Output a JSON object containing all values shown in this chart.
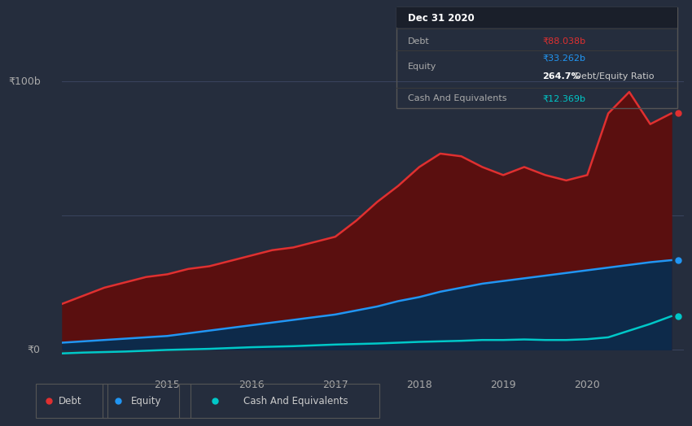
{
  "background_color": "#252d3d",
  "plot_bg_color": "#252d3d",
  "grid_color": "#3a4460",
  "years_x": [
    2013.75,
    2014.0,
    2014.25,
    2014.5,
    2014.75,
    2015.0,
    2015.25,
    2015.5,
    2015.75,
    2016.0,
    2016.25,
    2016.5,
    2016.75,
    2017.0,
    2017.25,
    2017.5,
    2017.75,
    2018.0,
    2018.25,
    2018.5,
    2018.75,
    2019.0,
    2019.25,
    2019.5,
    2019.75,
    2020.0,
    2020.25,
    2020.5,
    2020.75,
    2021.0
  ],
  "debt": [
    17,
    20,
    23,
    25,
    27,
    28,
    30,
    31,
    33,
    35,
    37,
    38,
    40,
    42,
    48,
    55,
    61,
    68,
    73,
    72,
    68,
    65,
    68,
    65,
    63,
    65,
    88,
    96,
    84,
    88
  ],
  "equity": [
    2.5,
    3.0,
    3.5,
    4.0,
    4.5,
    5.0,
    6.0,
    7.0,
    8.0,
    9.0,
    10.0,
    11.0,
    12.0,
    13.0,
    14.5,
    16.0,
    18.0,
    19.5,
    21.5,
    23.0,
    24.5,
    25.5,
    26.5,
    27.5,
    28.5,
    29.5,
    30.5,
    31.5,
    32.5,
    33.262
  ],
  "cash": [
    -1.5,
    -1.2,
    -1.0,
    -0.8,
    -0.5,
    -0.2,
    0.0,
    0.2,
    0.5,
    0.8,
    1.0,
    1.2,
    1.5,
    1.8,
    2.0,
    2.2,
    2.5,
    2.8,
    3.0,
    3.2,
    3.5,
    3.5,
    3.7,
    3.5,
    3.5,
    3.8,
    4.5,
    7.0,
    9.5,
    12.369
  ],
  "debt_color": "#e03030",
  "equity_color": "#2196F3",
  "cash_color": "#00c8c8",
  "debt_fill_color": "#5a0f0f",
  "equity_fill_color": "#0d2a4a",
  "ylim_min": -8,
  "ylim_max": 110,
  "ytick_100_label": "₹100b",
  "ytick_0_label": "₹0",
  "xtick_years": [
    2015,
    2016,
    2017,
    2018,
    2019,
    2020
  ],
  "annotation_date": "Dec 31 2020",
  "annotation_debt_label": "Debt",
  "annotation_debt_value": "₹88.038b",
  "annotation_equity_label": "Equity",
  "annotation_equity_value": "₹33.262b",
  "annotation_ratio": "264.7% Debt/Equity Ratio",
  "annotation_cash_label": "Cash And Equivalents",
  "annotation_cash_value": "₹12.369b",
  "legend_items": [
    "Debt",
    "Equity",
    "Cash And Equivalents"
  ],
  "legend_colors": [
    "#e03030",
    "#2196F3",
    "#00c8c8"
  ]
}
